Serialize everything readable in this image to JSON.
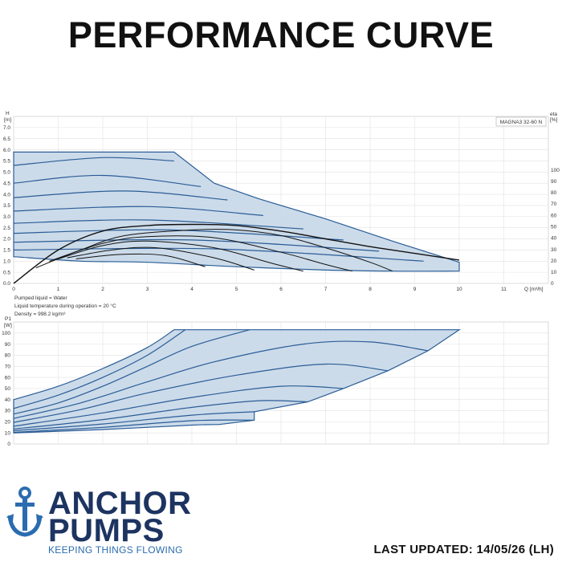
{
  "header": {
    "title": "PERFORMANCE CURVE"
  },
  "brand": {
    "line1": "ANCHOR",
    "line2": "PUMPS",
    "tagline": "KEEPING THINGS FLOWING"
  },
  "footer": {
    "last_updated": "LAST UPDATED: 14/05/26 (LH)"
  },
  "colors": {
    "envelope_fill": "#c7d7e8",
    "curve_blue": "#2a5d96",
    "efficiency_black": "#111111",
    "brand_navy": "#1d3461",
    "brand_blue": "#2b6cb0"
  },
  "chart_data": [
    {
      "type": "line",
      "model_label": "MAGNA3 32-60 N",
      "ylabel": "H",
      "yunit": "[m]",
      "xlabel": "Q",
      "xunit": "[m³/h]",
      "y2label": "eta",
      "y2unit": "[%]",
      "xlim": [
        0,
        12
      ],
      "ylim": [
        0,
        7.5
      ],
      "y2lim": [
        0,
        100
      ],
      "x_ticks": [
        0,
        1,
        2,
        3,
        4,
        5,
        6,
        7,
        8,
        9,
        10,
        11
      ],
      "y_ticks": [
        "0.0",
        "0.5",
        "1.0",
        "1.5",
        "2.0",
        "2.5",
        "3.0",
        "3.5",
        "4.0",
        "4.5",
        "5.0",
        "5.5",
        "6.0",
        "6.5",
        "7.0"
      ],
      "y2_ticks": [
        0,
        10,
        20,
        30,
        40,
        50,
        60,
        70,
        80,
        90,
        100
      ],
      "max_curve": [
        [
          0,
          5.9
        ],
        [
          1,
          5.9
        ],
        [
          2,
          5.9
        ],
        [
          3,
          5.9
        ],
        [
          3.6,
          5.9
        ],
        [
          4.5,
          4.5
        ],
        [
          5.5,
          3.8
        ],
        [
          7,
          2.9
        ],
        [
          8.5,
          1.9
        ],
        [
          10,
          0.95
        ]
      ],
      "min_curve": [
        [
          0,
          1.2
        ],
        [
          1.5,
          1.0
        ],
        [
          3,
          0.95
        ],
        [
          5,
          0.75
        ],
        [
          7,
          0.6
        ],
        [
          8.5,
          0.55
        ],
        [
          10,
          0.55
        ]
      ],
      "head_curves": [
        [
          [
            0,
            5.3
          ],
          [
            2,
            5.65
          ],
          [
            3.6,
            5.5
          ]
        ],
        [
          [
            0,
            4.5
          ],
          [
            2,
            4.85
          ],
          [
            4.2,
            4.35
          ]
        ],
        [
          [
            0,
            3.85
          ],
          [
            2.5,
            4.15
          ],
          [
            4.8,
            3.75
          ]
        ],
        [
          [
            0,
            3.25
          ],
          [
            3,
            3.45
          ],
          [
            5.6,
            3.05
          ]
        ],
        [
          [
            0,
            2.7
          ],
          [
            3,
            2.85
          ],
          [
            6.5,
            2.45
          ]
        ],
        [
          [
            0,
            2.25
          ],
          [
            3.5,
            2.4
          ],
          [
            7.4,
            1.95
          ]
        ],
        [
          [
            0,
            1.85
          ],
          [
            4,
            1.95
          ],
          [
            8.2,
            1.45
          ]
        ],
        [
          [
            0,
            1.5
          ],
          [
            4.5,
            1.55
          ],
          [
            9.2,
            1.0
          ]
        ]
      ],
      "efficiency_curves": [
        [
          [
            0,
            0
          ],
          [
            1,
            1.5
          ],
          [
            2,
            2.35
          ],
          [
            3,
            2.6
          ],
          [
            4,
            2.65
          ],
          [
            5,
            2.6
          ],
          [
            6,
            2.35
          ],
          [
            7,
            2.0
          ],
          [
            8,
            1.65
          ],
          [
            9,
            1.35
          ],
          [
            10,
            1.05
          ]
        ],
        [
          [
            0.5,
            0.7
          ],
          [
            1.5,
            1.5
          ],
          [
            2.5,
            2.15
          ],
          [
            4,
            2.4
          ],
          [
            5,
            2.4
          ],
          [
            6,
            2.15
          ],
          [
            7,
            1.6
          ],
          [
            8,
            0.95
          ],
          [
            8.5,
            0.55
          ]
        ],
        [
          [
            0.8,
            1.0
          ],
          [
            2,
            1.8
          ],
          [
            3,
            2.1
          ],
          [
            4.5,
            2.05
          ],
          [
            6,
            1.4
          ],
          [
            7,
            0.85
          ],
          [
            7.6,
            0.55
          ]
        ],
        [
          [
            1,
            1.1
          ],
          [
            2,
            1.7
          ],
          [
            3,
            1.9
          ],
          [
            4.5,
            1.6
          ],
          [
            5.8,
            0.9
          ],
          [
            6.5,
            0.55
          ]
        ],
        [
          [
            1.2,
            1.15
          ],
          [
            2.2,
            1.5
          ],
          [
            3.2,
            1.6
          ],
          [
            4.5,
            1.15
          ],
          [
            5.4,
            0.6
          ]
        ],
        [
          [
            1.4,
            1.1
          ],
          [
            2.4,
            1.3
          ],
          [
            3.4,
            1.25
          ],
          [
            4.3,
            0.75
          ]
        ]
      ]
    },
    {
      "type": "line",
      "ylabel": "P1",
      "yunit": "[W]",
      "xlim": [
        0,
        12
      ],
      "ylim": [
        0,
        110
      ],
      "y_ticks": [
        0,
        10,
        20,
        30,
        40,
        50,
        60,
        70,
        80,
        90,
        100
      ],
      "max_curve": [
        [
          0,
          40
        ],
        [
          1,
          52
        ],
        [
          2,
          68
        ],
        [
          3,
          87
        ],
        [
          3.6,
          103
        ],
        [
          10,
          103
        ]
      ],
      "min_curve": [
        [
          0,
          10
        ],
        [
          2,
          13
        ],
        [
          4,
          17
        ],
        [
          4.6,
          17.5
        ]
      ],
      "power_curves": [
        [
          [
            0,
            32
          ],
          [
            1,
            44
          ],
          [
            2,
            60
          ],
          [
            3,
            80
          ],
          [
            3.85,
            103
          ]
        ],
        [
          [
            0,
            27
          ],
          [
            1,
            37
          ],
          [
            2,
            52
          ],
          [
            3,
            70
          ],
          [
            4,
            88
          ],
          [
            5.3,
            103
          ]
        ],
        [
          [
            0,
            23
          ],
          [
            1.5,
            37
          ],
          [
            3,
            56
          ],
          [
            4.5,
            74
          ],
          [
            6.5,
            90
          ],
          [
            8,
            92
          ],
          [
            9.3,
            84
          ]
        ],
        [
          [
            0,
            19.5
          ],
          [
            1.5,
            31
          ],
          [
            3,
            46
          ],
          [
            5,
            62
          ],
          [
            7,
            72
          ],
          [
            8.4,
            66
          ]
        ],
        [
          [
            0,
            16
          ],
          [
            2,
            28
          ],
          [
            4,
            42
          ],
          [
            6,
            52
          ],
          [
            7.4,
            50
          ]
        ],
        [
          [
            0,
            13.5
          ],
          [
            2,
            22
          ],
          [
            4,
            33
          ],
          [
            5.5,
            39
          ],
          [
            6.6,
            38
          ]
        ],
        [
          [
            0,
            12
          ],
          [
            2,
            18
          ],
          [
            4,
            26
          ],
          [
            5.4,
            29
          ]
        ],
        [
          [
            0,
            10.5
          ],
          [
            2,
            15
          ],
          [
            4,
            21
          ],
          [
            5.4,
            21.5
          ]
        ]
      ]
    }
  ],
  "medium_info": {
    "line1": "Pumped liquid = Water",
    "line2": "Liquid temperature during operation = 20 °C",
    "line3": "Density = 998.2 kg/m³"
  }
}
